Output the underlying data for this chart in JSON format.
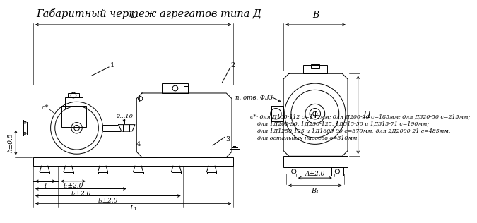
{
  "title": "Габаритный чертеж агрегатов типа Д",
  "title_fontsize": 10.5,
  "bg_color": "#ffffff",
  "line_color": "#000000",
  "footnote_lines": [
    "с*- для Д160-112 с=175мм; для Д200-36 с=185мм; для Д320-50 с=215мм;",
    "    для 1Д200-90, 1Д250-125, 1Д315-50 и 1Д315-71 с=190мм;",
    "    для 1Д1250-125 и 1Д1600-90 с=370мм; для 2Д2000-21 с=485мм,",
    "    для остальных насосов с=310мм."
  ],
  "labels": {
    "L": "L",
    "B": "B",
    "H": "H",
    "l": "l",
    "l1": "l₁±2.0",
    "l2": "l₂±2.0",
    "l3": "l₃±2.0",
    "L1": "L₁",
    "A": "A±2.0",
    "B1": "B₁",
    "h": "h±0.5",
    "c": "c*",
    "note1": "1",
    "note2": "2",
    "note3": "3",
    "note4": "4",
    "dim210": "2...10",
    "phi33": "п. отв. Φ33"
  }
}
